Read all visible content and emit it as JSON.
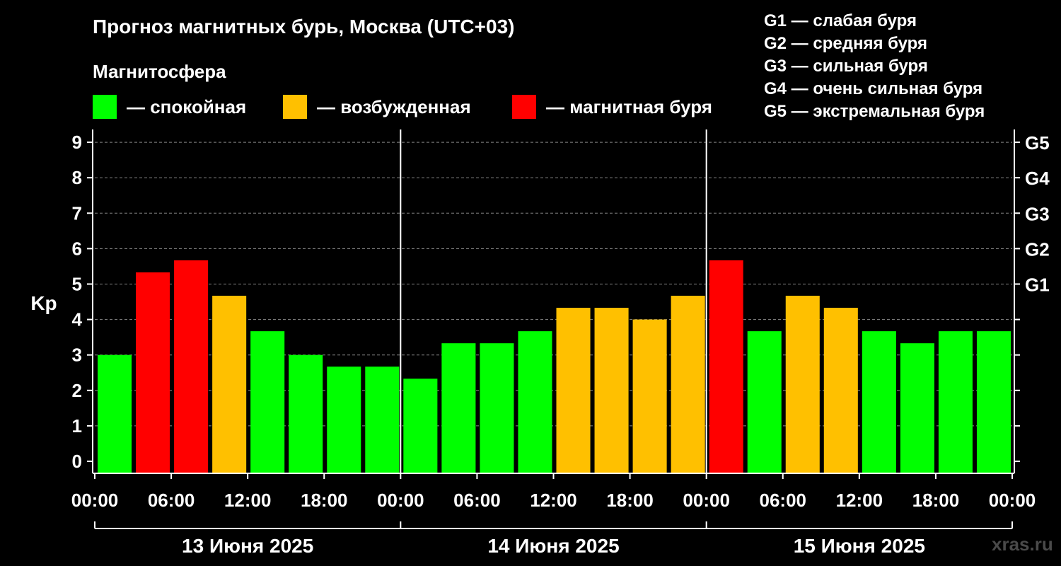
{
  "title": "Прогноз магнитных бурь, Москва (UTC+03)",
  "subtitle": "Магнитосфера",
  "legend": [
    {
      "color": "#00ff00",
      "label": "— спокойная"
    },
    {
      "color": "#ffc000",
      "label": "— возбужденная"
    },
    {
      "color": "#ff0000",
      "label": "— магнитная буря"
    }
  ],
  "storm_levels": [
    "G1 — слабая буря",
    "G2 — средняя буря",
    "G3 — сильная буря",
    "G4 — очень сильная буря",
    "G5 — экстремальная буря"
  ],
  "watermark": "xras.ru",
  "chart_data": {
    "type": "bar",
    "ylabel": "Kp",
    "ylim": [
      0,
      9
    ],
    "yticks": [
      0,
      1,
      2,
      3,
      4,
      5,
      6,
      7,
      8,
      9
    ],
    "right_axis_labels": [
      {
        "value": 5,
        "label": "G1"
      },
      {
        "value": 6,
        "label": "G2"
      },
      {
        "value": 7,
        "label": "G3"
      },
      {
        "value": 8,
        "label": "G4"
      },
      {
        "value": 9,
        "label": "G5"
      }
    ],
    "x_tick_labels": [
      "00:00",
      "06:00",
      "12:00",
      "18:00",
      "00:00",
      "06:00",
      "12:00",
      "18:00",
      "00:00",
      "06:00",
      "12:00",
      "18:00",
      "00:00"
    ],
    "days": [
      "13 Июня 2025",
      "14 Июня 2025",
      "15 Июня 2025"
    ],
    "bar_interval_hours": 3,
    "values": [
      3.0,
      5.33,
      5.67,
      4.67,
      3.67,
      3.0,
      2.67,
      2.67,
      2.33,
      3.33,
      3.33,
      3.67,
      4.33,
      4.33,
      4.0,
      4.67,
      5.67,
      3.67,
      4.67,
      4.33,
      3.67,
      3.33,
      3.67,
      3.67
    ],
    "colors": {
      "calm": "#00ff00",
      "active": "#ffc000",
      "storm": "#ff0000"
    },
    "thresholds": {
      "active_from": 4,
      "storm_from": 5
    },
    "grid": "dashed horizontal"
  }
}
